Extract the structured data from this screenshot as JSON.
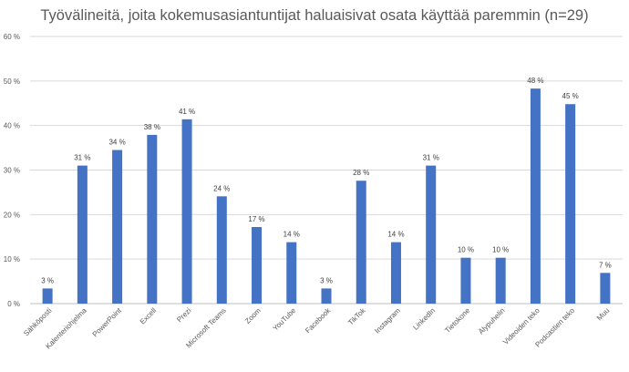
{
  "chart_data": {
    "type": "bar",
    "title": "Työvälineitä, joita kokemusasiantuntijat haluaisivat osata käyttää paremmin (n=29)",
    "xlabel": "",
    "ylabel": "",
    "ylim": [
      0,
      60
    ],
    "yticks": [
      0,
      10,
      20,
      30,
      40,
      50,
      60
    ],
    "ytick_labels": [
      "0 %",
      "10 %",
      "20 %",
      "30 %",
      "40 %",
      "50 %",
      "60 %"
    ],
    "grid": true,
    "legend": "none",
    "bar_color": "#4472c4",
    "categories": [
      "Sähköposti",
      "Kalenteriohjelma",
      "PowerPoint",
      "Excell",
      "Prezi",
      "Microsoft Teams",
      "Zoom",
      "YouTube",
      "Facebook",
      "TikTok",
      "Instagram",
      "LinkedIn",
      "Tietokone",
      "Älypuhelin",
      "Videoiden teko",
      "Podcastien teko",
      "Muu"
    ],
    "values": [
      3.4,
      31,
      34.5,
      37.9,
      41.4,
      24.1,
      17.2,
      13.8,
      3.4,
      27.6,
      13.8,
      31,
      10.3,
      10.3,
      48.3,
      44.8,
      6.9
    ],
    "data_labels": [
      "3 %",
      "31 %",
      "34 %",
      "38 %",
      "41 %",
      "24 %",
      "17 %",
      "14 %",
      "3 %",
      "28 %",
      "14 %",
      "31 %",
      "10 %",
      "10 %",
      "48 %",
      "45 %",
      "7 %"
    ]
  }
}
